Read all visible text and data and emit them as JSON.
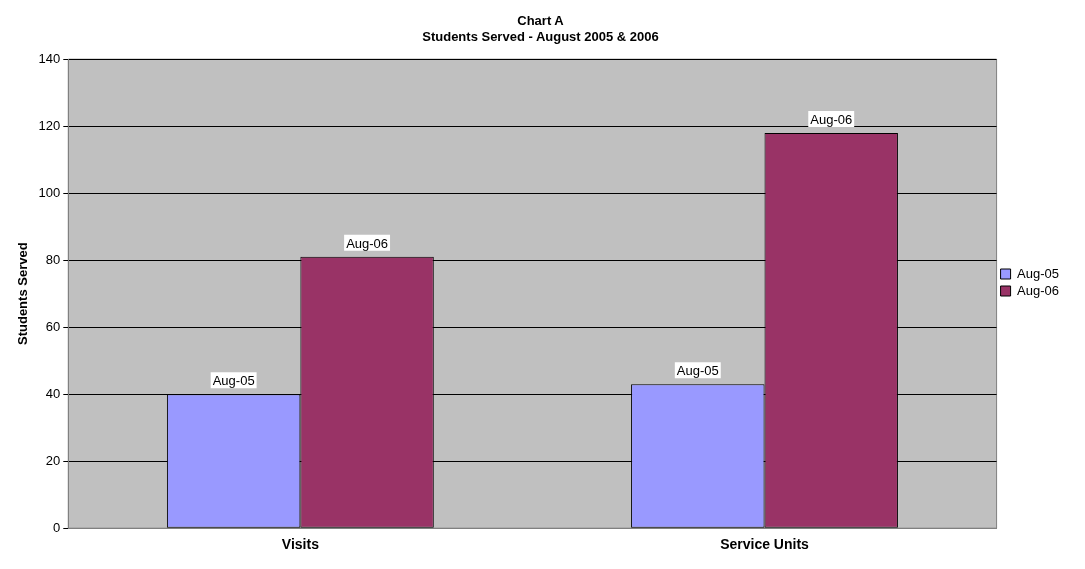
{
  "chart_data": {
    "type": "bar",
    "title": "Chart A",
    "subtitle": "Students Served - August 2005 & 2006",
    "ylabel": "Students Served",
    "categories": [
      "Visits",
      "Service Units"
    ],
    "series": [
      {
        "name": "Aug-05",
        "color": "#9999ff",
        "values": [
          40,
          43
        ],
        "value_labels": [
          "Aug-05",
          "Aug-05"
        ]
      },
      {
        "name": "Aug-06",
        "color": "#993366",
        "values": [
          81,
          118
        ],
        "value_labels": [
          "Aug-06",
          "Aug-06"
        ]
      }
    ],
    "ylim": [
      0,
      140
    ],
    "yticks": [
      0,
      20,
      40,
      60,
      80,
      100,
      120,
      140
    ],
    "grid": "y",
    "legend": "right"
  }
}
